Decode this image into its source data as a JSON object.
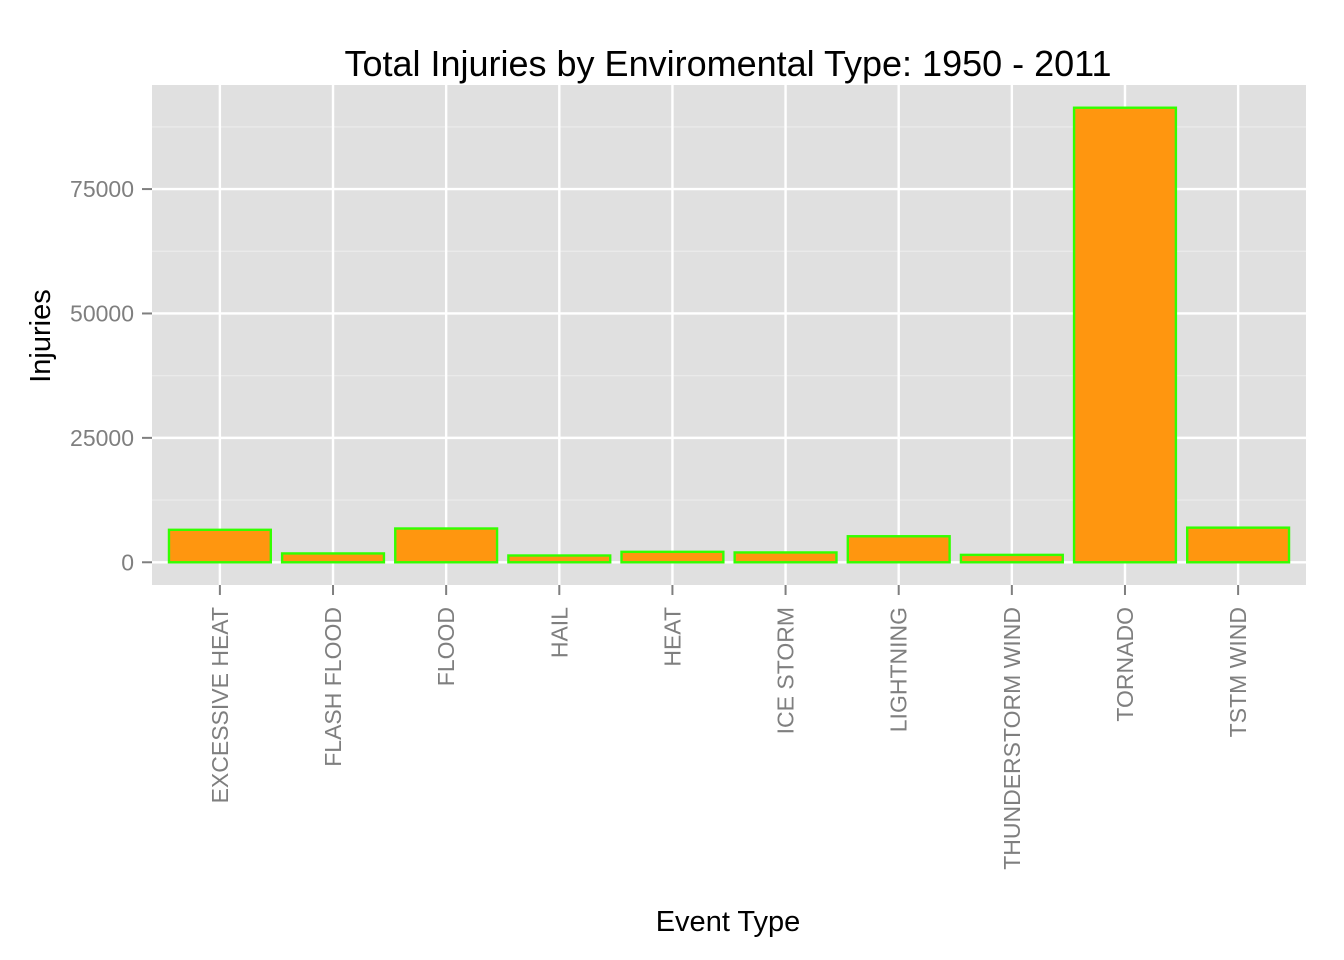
{
  "chart_data": {
    "type": "bar",
    "title": "Total Injuries by Enviromental Type: 1950 - 2011",
    "xlabel": "Event Type",
    "ylabel": "Injuries",
    "categories": [
      "EXCESSIVE HEAT",
      "FLASH FLOOD",
      "FLOOD",
      "HAIL",
      "HEAT",
      "ICE STORM",
      "LIGHTNING",
      "THUNDERSTORM WIND",
      "TORNADO",
      "TSTM WIND"
    ],
    "values": [
      6525,
      1777,
      6789,
      1361,
      2100,
      1975,
      5230,
      1488,
      91346,
      6957
    ],
    "yticks": [
      0,
      25000,
      50000,
      75000
    ],
    "ytick_labels": [
      "0",
      "25000",
      "50000",
      "75000"
    ],
    "ylim": [
      -4567,
      95913
    ],
    "grid": true,
    "legend": "none",
    "colors": {
      "bar_fill": "#FF960F",
      "bar_outline": "#33FF00",
      "panel_background": "#E0E0E0",
      "grid_major": "#FFFFFF",
      "grid_minor": "#EBEBEB",
      "tick_text": "#7F7F7F"
    }
  }
}
